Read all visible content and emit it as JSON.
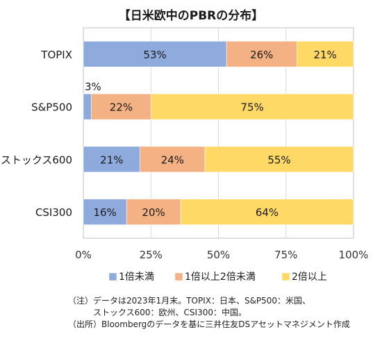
{
  "chart_data": {
    "type": "bar",
    "orientation": "horizontal",
    "stacked": true,
    "title": "【日米欧中のPBRの分布】",
    "categories": [
      "TOPIX",
      "S&P500",
      "ストックス600",
      "CSI300"
    ],
    "series": [
      {
        "name": "1倍未満",
        "values": [
          53,
          3,
          21,
          16
        ],
        "color": "#8faadc"
      },
      {
        "name": "1倍以上2倍未満",
        "values": [
          26,
          22,
          24,
          20
        ],
        "color": "#f4b183"
      },
      {
        "name": "2倍以上",
        "values": [
          21,
          75,
          55,
          64
        ],
        "color": "#ffd966"
      }
    ],
    "xlim": [
      0,
      100
    ],
    "xticks": [
      "0%",
      "25%",
      "50%",
      "75%",
      "100%"
    ],
    "value_suffix": "%",
    "grid": "vertical",
    "legend_position": "bottom"
  },
  "notes": [
    "（注）データは2023年1月末。TOPIX：日本、S&P500：米国、",
    "ストックス600：欧州、CSI300：中国。",
    "（出所）Bloombergのデータを基に三井住友DSアセットマネジメント作成"
  ]
}
